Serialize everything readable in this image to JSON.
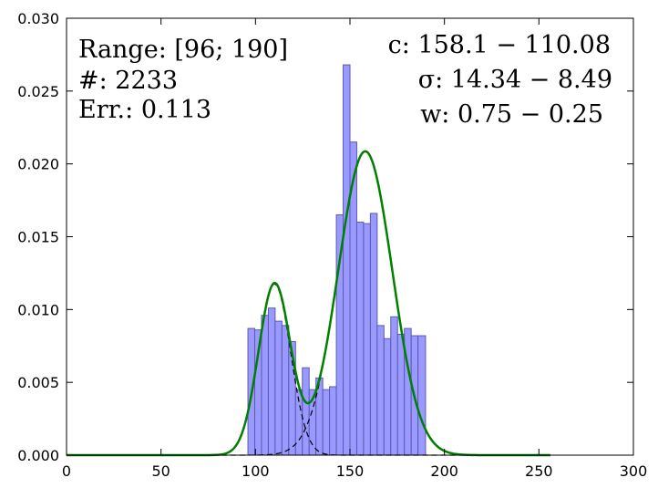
{
  "chart_data": {
    "type": "bar",
    "title": "",
    "xlabel": "",
    "ylabel": "",
    "xlim": [
      0,
      300
    ],
    "ylim": [
      0,
      0.03
    ],
    "x_ticks": [
      0,
      50,
      100,
      150,
      200,
      250,
      300
    ],
    "y_ticks": [
      0.0,
      0.005,
      0.01,
      0.015,
      0.02,
      0.025,
      0.03
    ],
    "x_tick_labels": [
      "0",
      "50",
      "100",
      "150",
      "200",
      "250",
      "300"
    ],
    "y_tick_labels": [
      "0.000",
      "0.005",
      "0.010",
      "0.015",
      "0.020",
      "0.025",
      "0.030"
    ],
    "grid": false,
    "histogram": {
      "bin_edges": [
        96,
        99.6,
        103.2,
        106.8,
        110.4,
        114.0,
        117.6,
        121.2,
        124.8,
        128.4,
        132.0,
        135.6,
        139.2,
        142.8,
        146.4,
        150.0,
        153.6,
        157.2,
        160.8,
        164.4,
        168.0,
        171.6,
        175.2,
        178.8,
        182.4,
        186.0,
        190.0
      ],
      "values": [
        0.0087,
        0.0086,
        0.0096,
        0.0101,
        0.0092,
        0.0089,
        0.0078,
        0.0045,
        0.006,
        0.0045,
        0.0053,
        0.0045,
        0.0047,
        0.0165,
        0.0268,
        0.0215,
        0.016,
        0.0159,
        0.0166,
        0.0089,
        0.008,
        0.0095,
        0.0083,
        0.0087,
        0.0082,
        0.0082
      ],
      "color": "#9999ff"
    },
    "fit": {
      "components": [
        {
          "mean": 158.1,
          "sigma": 14.34,
          "weight": 0.75
        },
        {
          "mean": 110.08,
          "sigma": 8.49,
          "weight": 0.25
        }
      ],
      "total_color": "#007f00",
      "component_style": "dashed"
    },
    "annotations_left": [
      "Range: [96; 190]",
      "#: 2233",
      "Err.: 0.113"
    ],
    "annotations_right": [
      "c: 158.1 − 110.08",
      "σ: 14.34 − 8.49",
      "w: 0.75 − 0.25"
    ]
  }
}
